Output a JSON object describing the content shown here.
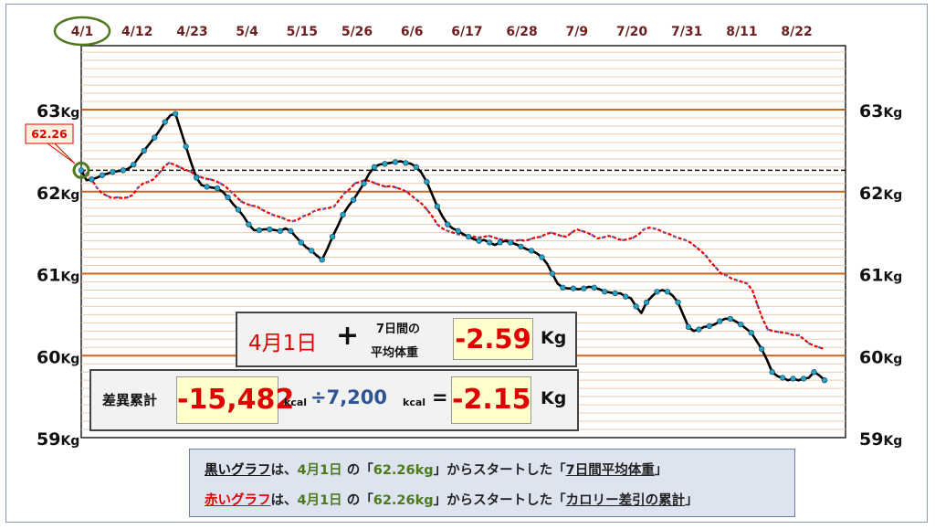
{
  "chart_data": {
    "type": "line",
    "x_tick_labels": [
      "4/1",
      "4/12",
      "4/23",
      "5/4",
      "5/15",
      "5/26",
      "6/6",
      "6/17",
      "6/28",
      "7/9",
      "7/20",
      "7/31",
      "8/11",
      "8/22"
    ],
    "y_tick_values": [
      "63",
      "62",
      "61",
      "60",
      "59"
    ],
    "y_unit": "Kg",
    "ylim": [
      59,
      64
    ],
    "start_value_label": "62.26",
    "baseline": 62.26,
    "series": [
      {
        "name": "7日間平均体重",
        "color": "#000000",
        "values": [
          62.26,
          62.14,
          62.15,
          62.17,
          62.2,
          62.22,
          62.24,
          62.25,
          62.26,
          62.28,
          62.33,
          62.42,
          62.5,
          62.58,
          62.66,
          62.75,
          62.85,
          62.93,
          62.95,
          62.75,
          62.55,
          62.35,
          62.17,
          62.08,
          62.06,
          62.05,
          62.04,
          62.0,
          61.93,
          61.85,
          61.78,
          61.7,
          61.6,
          61.53,
          61.53,
          61.54,
          61.54,
          61.53,
          61.52,
          61.55,
          61.52,
          61.45,
          61.38,
          61.32,
          61.28,
          61.22,
          61.17,
          61.3,
          61.45,
          61.58,
          61.72,
          61.82,
          61.9,
          62.0,
          62.1,
          62.22,
          62.3,
          62.33,
          62.34,
          62.35,
          62.36,
          62.37,
          62.35,
          62.34,
          62.3,
          62.23,
          62.12,
          61.97,
          61.82,
          61.7,
          61.6,
          61.55,
          61.52,
          61.48,
          61.45,
          61.42,
          61.4,
          61.41,
          61.38,
          61.35,
          61.38,
          61.4,
          61.38,
          61.36,
          61.33,
          61.3,
          61.28,
          61.25,
          61.2,
          61.12,
          61.0,
          60.88,
          60.83,
          60.82,
          60.82,
          60.81,
          60.82,
          60.84,
          60.83,
          60.81,
          60.78,
          60.77,
          60.76,
          60.76,
          60.72,
          60.7,
          60.6,
          60.52,
          60.65,
          60.72,
          60.78,
          60.8,
          60.78,
          60.73,
          60.65,
          60.5,
          60.35,
          60.3,
          60.32,
          60.35,
          60.36,
          60.38,
          60.42,
          60.45,
          60.45,
          60.42,
          60.38,
          60.33,
          60.28,
          60.18,
          60.08,
          59.95,
          59.8,
          59.75,
          59.73,
          59.7,
          59.72,
          59.7,
          59.72,
          59.73,
          59.8,
          59.76,
          59.7
        ],
        "markers": true
      },
      {
        "name": "カロリー差引の累計",
        "color": "#e60000",
        "values": [
          62.26,
          62.22,
          62.15,
          62.05,
          61.98,
          61.95,
          61.92,
          61.93,
          61.92,
          61.93,
          61.96,
          62.05,
          62.1,
          62.12,
          62.15,
          62.22,
          62.3,
          62.35,
          62.33,
          62.3,
          62.27,
          62.25,
          62.21,
          62.18,
          62.16,
          62.15,
          62.13,
          62.1,
          62.06,
          62.0,
          61.94,
          61.88,
          61.85,
          61.83,
          61.82,
          61.78,
          61.75,
          61.72,
          61.7,
          61.68,
          61.65,
          61.64,
          61.66,
          61.7,
          61.72,
          61.76,
          61.78,
          61.79,
          61.8,
          61.82,
          61.9,
          61.98,
          62.03,
          62.1,
          62.12,
          62.14,
          62.13,
          62.1,
          62.08,
          62.06,
          62.07,
          62.05,
          62.03,
          62.0,
          61.95,
          61.9,
          61.85,
          61.78,
          61.7,
          61.6,
          61.55,
          61.52,
          61.5,
          61.48,
          61.47,
          61.46,
          61.45,
          61.44,
          61.45,
          61.46,
          61.44,
          61.42,
          61.41,
          61.4,
          61.4,
          61.41,
          61.4,
          61.42,
          61.44,
          61.45,
          61.48,
          61.5,
          61.48,
          61.46,
          61.45,
          61.5,
          61.54,
          61.52,
          61.5,
          61.47,
          61.43,
          61.44,
          61.46,
          61.45,
          61.42,
          61.41,
          61.42,
          61.44,
          61.48,
          61.54,
          61.56,
          61.55,
          61.53,
          61.5,
          61.48,
          61.45,
          61.43,
          61.41,
          61.38,
          61.33,
          61.28,
          61.22,
          61.14,
          61.07,
          61.0,
          60.98,
          60.94,
          60.92,
          60.9,
          60.88,
          60.8,
          60.62,
          60.45,
          60.32,
          60.3,
          60.29,
          60.28,
          60.27,
          60.25,
          60.25,
          60.2,
          60.15,
          60.12,
          60.1,
          60.08
        ],
        "markers": true
      }
    ],
    "grid": true,
    "legend": "bottom-center"
  },
  "summary": {
    "date_label": "4月1日",
    "plus": "+",
    "avg_label_line1": "7日間の",
    "avg_label_line2": "平均体重",
    "avg_value": "-2.59",
    "avg_unit": "Kg",
    "cum_label": "差異累計",
    "cum_value": "-15,482",
    "kcal1": "kcal",
    "divide": "÷7,200",
    "kcal2": "kcal",
    "equals": "=",
    "result_value": "-2.15",
    "result_unit": "Kg"
  },
  "legend": {
    "black": {
      "name": "黒いグラフ",
      "p1": "は、",
      "date": "4月1日",
      "p2": " の「",
      "value": "62.26kg",
      "p3": "」からスタートした「",
      "target": "7日間平均体重",
      "p4": "」"
    },
    "red": {
      "name": "赤いグラフ",
      "p1": "は、",
      "date": "4月1日",
      "p2": " の「",
      "value": "62.26kg",
      "p3": "」からスタートした「",
      "target": "カロリー差引の累計",
      "p4": "」"
    }
  },
  "colors": {
    "major_grid": "#c8651f",
    "minor_grid": "#f0c9a8",
    "black_series": "#000000",
    "red_series": "#e60000",
    "marker_fill": "#29a3c7",
    "value_red": "#e00000",
    "divide_blue": "#2f5496",
    "start_circle": "#4e7a1e"
  }
}
